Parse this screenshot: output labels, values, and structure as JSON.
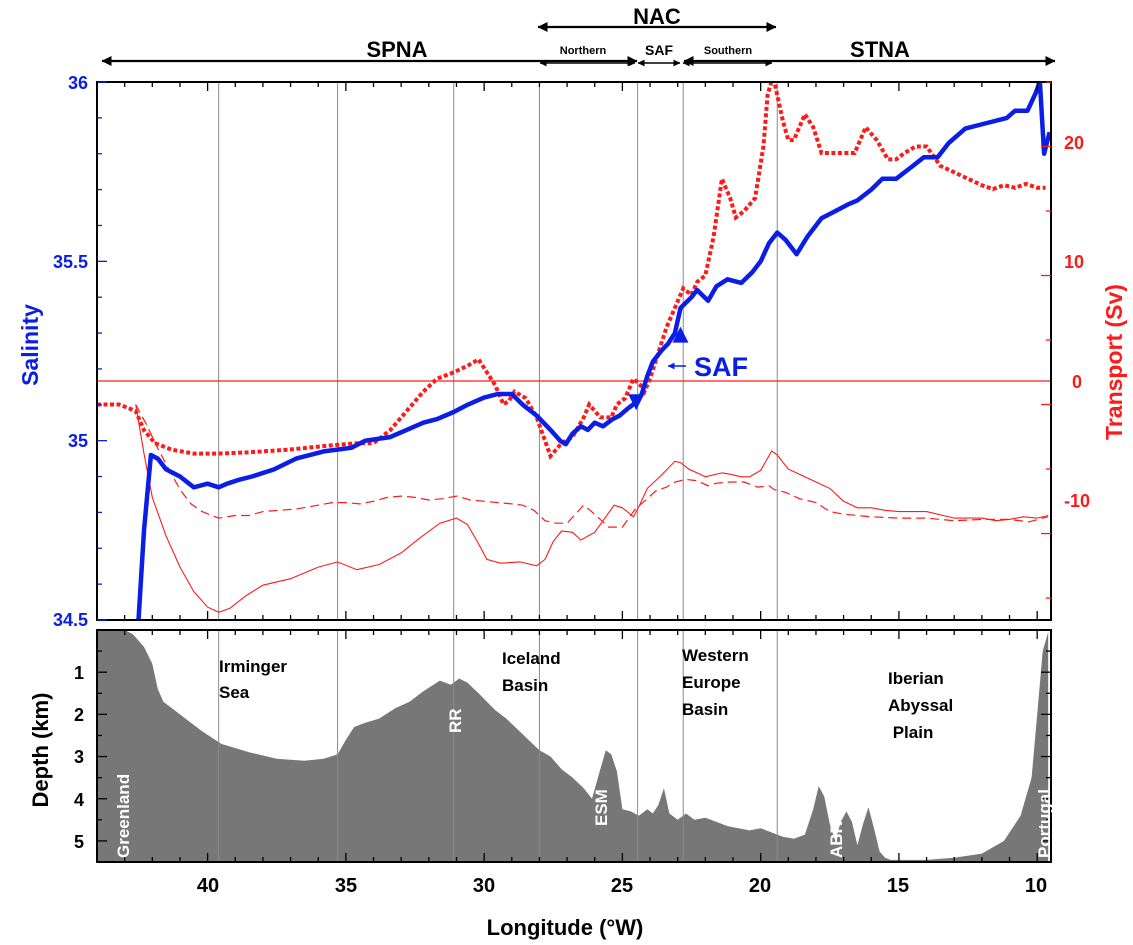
{
  "chart_data": [
    {
      "type": "line",
      "panel": "upper",
      "xlabel": "",
      "ylabel": "Salinity",
      "y2label": "Transport (Sv)",
      "x_reversed": true,
      "xlim": [
        44,
        9.5
      ],
      "ylim": [
        34.5,
        36
      ],
      "y2lim": [
        -16.7,
        25
      ],
      "yticks": [
        "34.5",
        "35",
        "35.5",
        "36"
      ],
      "y2ticks": [
        "-10",
        "0",
        "10",
        "20"
      ],
      "grid": "vertical lines at front and basin boundaries",
      "legend": "none",
      "colors": {
        "salinity": "#0a1ee6",
        "transport": "#ff1a1a"
      },
      "regions": {
        "spna": "SPNA",
        "nac": "NAC",
        "stna": "STNA",
        "northern": "Northern",
        "saf": "SAF",
        "southern": "Southern"
      },
      "annotations": {
        "saf_label": "SAF"
      },
      "series": [
        {
          "role": "salinity",
          "style": "thick solid blue",
          "x": [
            42.5,
            42.3,
            42.05,
            41.8,
            41.5,
            41.0,
            40.5,
            40.0,
            39.6,
            39.3,
            38.9,
            38.4,
            37.6,
            36.8,
            35.8,
            34.8,
            34.3,
            33.4,
            32.8,
            32.2,
            31.7,
            31.1,
            30.6,
            30.0,
            29.5,
            29.0,
            28.6,
            28.1,
            27.6,
            27.25,
            27.05,
            26.8,
            26.5,
            26.25,
            26.0,
            25.7,
            25.35,
            25.1,
            24.8,
            24.45,
            24.3,
            24.1,
            23.9,
            23.6,
            23.35,
            23.1,
            22.9,
            22.5,
            22.3,
            21.9,
            21.6,
            21.2,
            20.7,
            20.3,
            20.0,
            19.7,
            19.4,
            19.1,
            18.7,
            18.3,
            17.8,
            17.3,
            16.8,
            16.5,
            16.0,
            15.6,
            15.1,
            14.6,
            14.1,
            13.6,
            13.2,
            12.6,
            12.1,
            11.6,
            11.1,
            10.8,
            10.35,
            10.05,
            9.9,
            9.75,
            9.55
          ],
          "y": [
            34.5,
            34.75,
            34.96,
            34.95,
            34.92,
            34.9,
            34.87,
            34.88,
            34.87,
            34.88,
            34.89,
            34.9,
            34.92,
            34.95,
            34.97,
            34.98,
            35.0,
            35.01,
            35.03,
            35.05,
            35.06,
            35.08,
            35.1,
            35.12,
            35.13,
            35.13,
            35.1,
            35.07,
            35.03,
            35.0,
            34.99,
            35.02,
            35.04,
            35.03,
            35.05,
            35.04,
            35.06,
            35.07,
            35.09,
            35.11,
            35.13,
            35.18,
            35.22,
            35.25,
            35.27,
            35.3,
            35.37,
            35.4,
            35.42,
            35.39,
            35.43,
            35.45,
            35.44,
            35.47,
            35.5,
            35.55,
            35.58,
            35.56,
            35.52,
            35.57,
            35.62,
            35.64,
            35.66,
            35.67,
            35.7,
            35.73,
            35.73,
            35.76,
            35.79,
            35.79,
            35.83,
            35.87,
            35.88,
            35.89,
            35.9,
            35.92,
            35.92,
            35.97,
            36.0,
            35.8,
            35.86
          ]
        },
        {
          "role": "transport_cumulative",
          "style": "dotted red",
          "axis": "right",
          "x": [
            44.0,
            43.2,
            42.6,
            42.3,
            41.9,
            41.3,
            40.5,
            39.6,
            38.5,
            37.1,
            35.7,
            34.6,
            34.0,
            33.4,
            32.8,
            32.2,
            31.7,
            31.1,
            30.6,
            30.2,
            29.9,
            29.6,
            29.3,
            29.1,
            28.9,
            28.5,
            28.1,
            27.6,
            27.2,
            26.8,
            26.4,
            26.2,
            25.8,
            25.4,
            25.2,
            24.9,
            24.6,
            24.35,
            24.2,
            24.0,
            23.7,
            23.4,
            23.0,
            22.8,
            22.5,
            22.3,
            22.0,
            21.7,
            21.4,
            21.1,
            20.9,
            20.6,
            20.2,
            19.9,
            19.75,
            19.55,
            19.4,
            19.2,
            19.0,
            18.8,
            18.4,
            18.1,
            17.8,
            17.5,
            17.0,
            16.6,
            16.2,
            15.8,
            15.4,
            15.1,
            14.8,
            14.4,
            14.0,
            13.5,
            13.0,
            12.5,
            12.0,
            11.6,
            11.2,
            10.8,
            10.4,
            10.0,
            9.7
          ],
          "y": [
            0,
            0,
            -0.5,
            -2.0,
            -3.0,
            -3.5,
            -3.8,
            -3.8,
            -3.7,
            -3.5,
            -3.2,
            -3.0,
            -3.0,
            -2.0,
            -0.5,
            1.0,
            2.0,
            2.5,
            3.0,
            3.5,
            2.5,
            1.5,
            0,
            0.3,
            1.0,
            0.5,
            -1.0,
            -4.0,
            -3.0,
            -2.5,
            -1.0,
            0,
            -1.0,
            -1.0,
            0,
            0.5,
            2.0,
            1.5,
            1.0,
            2.0,
            4.0,
            6.0,
            8.0,
            9.0,
            8.5,
            9.5,
            10.0,
            13.0,
            17.5,
            16.0,
            14.5,
            15.0,
            16.0,
            20.0,
            24.0,
            25.5,
            24.0,
            22.0,
            20.5,
            20.5,
            22.5,
            21.5,
            19.5,
            19.5,
            19.5,
            19.5,
            21.5,
            20.5,
            19.0,
            19.0,
            19.5,
            20.0,
            20.0,
            18.5,
            18.0,
            17.5,
            17.0,
            16.7,
            17.0,
            16.8,
            17.1,
            16.8,
            16.8
          ]
        },
        {
          "role": "transport_component_solid",
          "style": "thin solid red",
          "axis": "right",
          "x": [
            42.6,
            42.3,
            42.0,
            41.5,
            41.0,
            40.5,
            40.0,
            39.6,
            39.2,
            38.6,
            38.0,
            37.0,
            36.0,
            35.3,
            34.6,
            33.8,
            33.0,
            32.3,
            31.6,
            31.0,
            30.6,
            30.2,
            29.9,
            29.4,
            28.7,
            28.1,
            27.8,
            27.5,
            27.2,
            26.8,
            26.5,
            26.0,
            25.6,
            25.3,
            25.0,
            24.6,
            24.4,
            24.1,
            23.6,
            23.1,
            22.9,
            22.6,
            22.3,
            22.0,
            21.4,
            21.1,
            20.7,
            20.4,
            20.0,
            19.6,
            19.4,
            19.0,
            18.5,
            18.0,
            17.5,
            17.0,
            16.5,
            16.0,
            15.5,
            15.0,
            14.0,
            13.0,
            12.0,
            11.5,
            11.0,
            10.5,
            10.0,
            9.6
          ],
          "y": [
            0,
            -3.8,
            -7.2,
            -10.2,
            -12.6,
            -14.5,
            -15.7,
            -16.1,
            -15.8,
            -14.8,
            -14.0,
            -13.5,
            -12.6,
            -12.2,
            -12.8,
            -12.4,
            -11.5,
            -10.3,
            -9.2,
            -8.8,
            -9.3,
            -10.8,
            -12.0,
            -12.3,
            -12.2,
            -12.5,
            -12.0,
            -10.6,
            -9.8,
            -9.9,
            -10.5,
            -9.9,
            -8.7,
            -7.8,
            -8.0,
            -8.7,
            -7.9,
            -6.5,
            -5.5,
            -4.4,
            -4.5,
            -5.0,
            -5.3,
            -5.6,
            -5.3,
            -5.4,
            -5.6,
            -5.6,
            -5.1,
            -3.6,
            -3.9,
            -5.0,
            -5.5,
            -6.0,
            -6.5,
            -7.5,
            -8.0,
            -8.0,
            -8.2,
            -8.3,
            -8.3,
            -8.8,
            -8.8,
            -9.0,
            -8.9,
            -8.7,
            -8.8,
            -8.6
          ]
        },
        {
          "role": "transport_component_dashed",
          "style": "thin dashed red",
          "axis": "right",
          "x": [
            42.6,
            42.2,
            41.8,
            41.4,
            41.0,
            40.6,
            40.2,
            39.6,
            39.0,
            38.5,
            38.0,
            37.4,
            36.8,
            36.0,
            35.5,
            35.0,
            34.5,
            34.0,
            33.5,
            33.0,
            32.5,
            32.0,
            31.5,
            31.0,
            30.5,
            30.0,
            29.5,
            29.0,
            28.6,
            28.2,
            27.8,
            27.4,
            27.0,
            26.7,
            26.4,
            26.0,
            25.5,
            25.0,
            24.5,
            24.2,
            23.8,
            23.4,
            23.1,
            22.7,
            22.3,
            21.9,
            21.6,
            21.1,
            20.6,
            20.1,
            19.7,
            19.5,
            19.1,
            18.6,
            18.0,
            17.5,
            17.0,
            16.0,
            15.0,
            14.0,
            13.0,
            12.0,
            11.0,
            10.3,
            9.8,
            9.6
          ],
          "y": [
            0,
            -1.6,
            -3.4,
            -5.0,
            -6.6,
            -7.7,
            -8.3,
            -8.8,
            -8.6,
            -8.6,
            -8.3,
            -8.2,
            -8.1,
            -7.8,
            -7.6,
            -7.6,
            -7.7,
            -7.5,
            -7.2,
            -7.1,
            -7.2,
            -7.4,
            -7.3,
            -7.1,
            -7.4,
            -7.5,
            -7.6,
            -7.7,
            -7.8,
            -8.2,
            -9.0,
            -9.2,
            -9.2,
            -8.5,
            -7.8,
            -8.5,
            -9.5,
            -9.5,
            -8.0,
            -7.5,
            -6.7,
            -6.4,
            -6.0,
            -5.8,
            -5.9,
            -6.3,
            -6.1,
            -6.0,
            -6.0,
            -6.4,
            -6.3,
            -6.6,
            -6.8,
            -7.3,
            -7.6,
            -8.3,
            -8.5,
            -8.7,
            -8.8,
            -8.8,
            -9.0,
            -8.9,
            -8.9,
            -9.1,
            -8.8,
            -8.7
          ]
        }
      ],
      "saf_markers": {
        "triangle_up": {
          "x": 22.9,
          "y": 35.29
        },
        "triangle_down": {
          "x": 24.5,
          "y": 35.11
        }
      },
      "reference_lines": {
        "transport_zero": 0
      }
    },
    {
      "type": "area",
      "panel": "lower",
      "xlabel": "Longitude (°W)",
      "ylabel": "Depth (km)",
      "x_reversed": true,
      "xlim": [
        44,
        9.5
      ],
      "ylim": [
        5.5,
        0
      ],
      "xticks": [
        "40",
        "35",
        "30",
        "25",
        "20",
        "15",
        "10"
      ],
      "yticks": [
        "1",
        "2",
        "3",
        "4",
        "5"
      ],
      "fill_color": "#777777",
      "labels": {
        "irminger": [
          "Irminger",
          "Sea"
        ],
        "iceland": [
          "Iceland",
          "Basin"
        ],
        "western": [
          "Western",
          "Europe",
          "Basin"
        ],
        "iberian": [
          "Iberian",
          "Abyssal",
          " Plain"
        ],
        "greenland": "Greenland",
        "portugal": "Portugal",
        "rr": "RR",
        "esm": "ESM",
        "abr": "ABR"
      },
      "bathymetry": {
        "x": [
          44.0,
          43.0,
          42.7,
          42.3,
          42.0,
          41.8,
          41.6,
          41.2,
          40.8,
          40.2,
          39.5,
          38.5,
          37.5,
          36.5,
          35.8,
          35.3,
          35.0,
          34.7,
          34.3,
          33.8,
          33.2,
          32.7,
          32.2,
          31.6,
          31.2,
          30.9,
          30.6,
          30.2,
          29.9,
          29.6,
          29.2,
          28.8,
          28.4,
          28.0,
          27.6,
          27.2,
          26.8,
          26.4,
          26.1,
          25.8,
          25.6,
          25.4,
          25.2,
          25.0,
          24.7,
          24.4,
          24.1,
          23.9,
          23.7,
          23.5,
          23.3,
          23.0,
          22.7,
          22.4,
          22.0,
          21.6,
          21.2,
          20.8,
          20.4,
          20.0,
          19.6,
          19.2,
          18.8,
          18.4,
          18.1,
          17.9,
          17.7,
          17.5,
          17.3,
          17.1,
          16.9,
          16.7,
          16.5,
          16.3,
          16.1,
          15.9,
          15.7,
          15.5,
          15.3,
          15.0,
          14.6,
          14.0,
          13.0,
          12.0,
          11.2,
          10.6,
          10.2,
          10.0,
          9.8,
          9.6
        ],
        "depth": [
          0,
          0,
          0.1,
          0.4,
          0.8,
          1.4,
          1.7,
          1.9,
          2.1,
          2.4,
          2.7,
          2.9,
          3.05,
          3.1,
          3.05,
          2.95,
          2.6,
          2.3,
          2.2,
          2.1,
          1.85,
          1.7,
          1.45,
          1.2,
          1.3,
          1.15,
          1.25,
          1.5,
          1.7,
          1.9,
          2.1,
          2.35,
          2.6,
          2.85,
          3.0,
          3.3,
          3.5,
          3.75,
          4.0,
          3.3,
          2.85,
          2.95,
          3.35,
          4.25,
          4.3,
          4.4,
          4.25,
          4.35,
          4.15,
          3.75,
          4.35,
          4.5,
          4.35,
          4.5,
          4.45,
          4.55,
          4.65,
          4.7,
          4.75,
          4.7,
          4.8,
          4.9,
          4.95,
          4.85,
          4.25,
          3.7,
          3.95,
          4.6,
          5.0,
          4.55,
          4.3,
          4.55,
          5.1,
          4.6,
          4.2,
          4.7,
          5.25,
          5.4,
          5.45,
          5.45,
          5.45,
          5.45,
          5.4,
          5.3,
          5.0,
          4.4,
          3.5,
          2.0,
          0.5,
          0.05
        ]
      }
    }
  ],
  "vertical_lines": [
    39.6,
    35.3,
    31.1,
    28.0,
    24.45,
    22.8,
    19.4
  ]
}
